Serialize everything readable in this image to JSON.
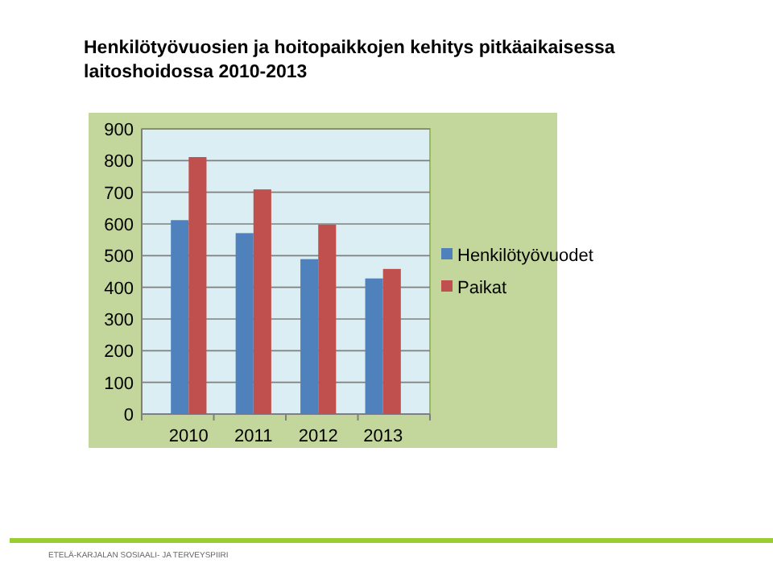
{
  "chart_data": {
    "type": "bar",
    "title": "Henkilötyövuosien  ja hoitopaikkojen kehitys pitkäaikaisessa laitoshoidossa 2010-2013",
    "categories": [
      "2010",
      "2011",
      "2012",
      "2013"
    ],
    "series": [
      {
        "name": "Henkilötyövuodet",
        "color": "#4f81bd",
        "values": [
          612,
          571,
          489,
          428
        ]
      },
      {
        "name": "Paikat",
        "color": "#c0504d",
        "values": [
          811,
          709,
          598,
          458
        ]
      }
    ],
    "ylim": [
      0,
      900
    ],
    "yticks": [
      0,
      100,
      200,
      300,
      400,
      500,
      600,
      700,
      800,
      900
    ],
    "grid": "y",
    "legend": "right",
    "annotations": [
      "ETELÄ-KARJALAN SOSIAALI- JA TERVEYSPIIRI"
    ]
  }
}
